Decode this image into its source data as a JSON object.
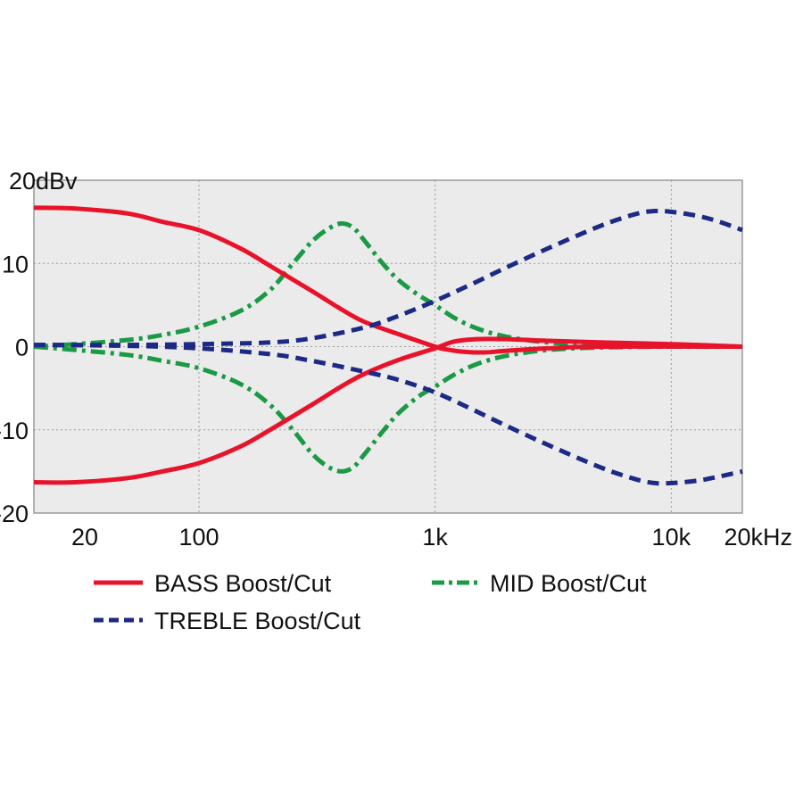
{
  "chart_data": {
    "type": "line",
    "title": "",
    "xlabel": "",
    "ylabel": "",
    "x_scale": "log",
    "xlim": [
      20,
      20000
    ],
    "ylim": [
      -20,
      20
    ],
    "grid": true,
    "legend_position": "bottom",
    "x_ticks": [
      {
        "value": 20,
        "label": "20"
      },
      {
        "value": 100,
        "label": "100"
      },
      {
        "value": 1000,
        "label": "1k"
      },
      {
        "value": 10000,
        "label": "10k"
      },
      {
        "value": 20000,
        "label": "20kHz"
      }
    ],
    "y_ticks": [
      {
        "value": 20,
        "label": "20dBv"
      },
      {
        "value": 10,
        "label": "10"
      },
      {
        "value": 0,
        "label": "0"
      },
      {
        "value": -10,
        "label": "-10"
      },
      {
        "value": -20,
        "label": "-20"
      }
    ],
    "legend": [
      {
        "series": "bass",
        "label": "BASS Boost/Cut"
      },
      {
        "series": "mid",
        "label": "MID Boost/Cut"
      },
      {
        "series": "treble",
        "label": "TREBLE Boost/Cut"
      }
    ],
    "series": [
      {
        "id": "bass",
        "name": "BASS Boost/Cut",
        "color": "#e8132b",
        "dash": "solid",
        "curves": [
          [
            [
              20,
              16.7
            ],
            [
              30,
              16.6
            ],
            [
              50,
              16.0
            ],
            [
              70,
              15.0
            ],
            [
              100,
              14.0
            ],
            [
              150,
              11.8
            ],
            [
              200,
              9.7
            ],
            [
              300,
              6.7
            ],
            [
              400,
              4.5
            ],
            [
              500,
              3.0
            ],
            [
              700,
              1.5
            ],
            [
              1000,
              0.0
            ],
            [
              1100,
              -0.3
            ],
            [
              1300,
              -0.6
            ],
            [
              1600,
              -0.7
            ],
            [
              2000,
              -0.5
            ],
            [
              3000,
              -0.2
            ],
            [
              5000,
              0.0
            ],
            [
              20000,
              0.0
            ]
          ],
          [
            [
              20,
              -16.3
            ],
            [
              30,
              -16.3
            ],
            [
              50,
              -15.8
            ],
            [
              70,
              -15.0
            ],
            [
              100,
              -14.0
            ],
            [
              150,
              -12.0
            ],
            [
              200,
              -10.0
            ],
            [
              300,
              -7.0
            ],
            [
              400,
              -4.8
            ],
            [
              500,
              -3.3
            ],
            [
              700,
              -1.6
            ],
            [
              1000,
              -0.2
            ],
            [
              1200,
              0.6
            ],
            [
              1500,
              0.9
            ],
            [
              2000,
              0.9
            ],
            [
              3000,
              0.7
            ],
            [
              5000,
              0.5
            ],
            [
              10000,
              0.3
            ],
            [
              20000,
              0.0
            ]
          ]
        ]
      },
      {
        "id": "mid",
        "name": "MID Boost/Cut",
        "color": "#1a9a44",
        "dash": "dashdot",
        "curves": [
          [
            [
              20,
              0.0
            ],
            [
              30,
              0.3
            ],
            [
              50,
              0.8
            ],
            [
              70,
              1.4
            ],
            [
              100,
              2.4
            ],
            [
              150,
              4.3
            ],
            [
              200,
              6.8
            ],
            [
              250,
              10.0
            ],
            [
              300,
              12.6
            ],
            [
              350,
              14.1
            ],
            [
              400,
              14.8
            ],
            [
              450,
              14.3
            ],
            [
              500,
              12.8
            ],
            [
              600,
              10.0
            ],
            [
              700,
              8.0
            ],
            [
              850,
              6.2
            ],
            [
              1000,
              5.0
            ],
            [
              1200,
              3.5
            ],
            [
              1500,
              2.2
            ],
            [
              2000,
              1.2
            ],
            [
              3000,
              0.5
            ],
            [
              5000,
              0.2
            ],
            [
              10000,
              0.0
            ],
            [
              20000,
              0.0
            ]
          ],
          [
            [
              20,
              0.0
            ],
            [
              30,
              -0.4
            ],
            [
              50,
              -1.0
            ],
            [
              70,
              -1.7
            ],
            [
              100,
              -2.6
            ],
            [
              150,
              -4.5
            ],
            [
              200,
              -7.0
            ],
            [
              250,
              -10.0
            ],
            [
              300,
              -12.8
            ],
            [
              350,
              -14.4
            ],
            [
              400,
              -15.0
            ],
            [
              450,
              -14.5
            ],
            [
              500,
              -13.0
            ],
            [
              600,
              -10.2
            ],
            [
              700,
              -8.0
            ],
            [
              850,
              -6.0
            ],
            [
              1000,
              -4.8
            ],
            [
              1200,
              -3.4
            ],
            [
              1500,
              -2.1
            ],
            [
              2000,
              -1.1
            ],
            [
              3000,
              -0.4
            ],
            [
              5000,
              -0.1
            ],
            [
              10000,
              0.0
            ],
            [
              20000,
              0.0
            ]
          ]
        ]
      },
      {
        "id": "treble",
        "name": "TREBLE Boost/Cut",
        "color": "#1c2a86",
        "dash": "dashed",
        "curves": [
          [
            [
              20,
              0.2
            ],
            [
              50,
              0.2
            ],
            [
              100,
              0.3
            ],
            [
              200,
              0.5
            ],
            [
              300,
              1.0
            ],
            [
              500,
              2.3
            ],
            [
              700,
              3.7
            ],
            [
              1000,
              5.5
            ],
            [
              1500,
              7.8
            ],
            [
              2000,
              9.5
            ],
            [
              3000,
              11.8
            ],
            [
              5000,
              14.5
            ],
            [
              7000,
              15.9
            ],
            [
              8500,
              16.3
            ],
            [
              10000,
              16.2
            ],
            [
              13000,
              15.7
            ],
            [
              16000,
              15.0
            ],
            [
              20000,
              14.0
            ]
          ],
          [
            [
              20,
              0.2
            ],
            [
              50,
              0.1
            ],
            [
              100,
              -0.2
            ],
            [
              200,
              -0.9
            ],
            [
              300,
              -1.7
            ],
            [
              500,
              -3.0
            ],
            [
              700,
              -4.0
            ],
            [
              1000,
              -5.5
            ],
            [
              1500,
              -7.8
            ],
            [
              2000,
              -9.5
            ],
            [
              3000,
              -11.8
            ],
            [
              5000,
              -14.5
            ],
            [
              7000,
              -15.9
            ],
            [
              8500,
              -16.4
            ],
            [
              10000,
              -16.4
            ],
            [
              13000,
              -16.1
            ],
            [
              16000,
              -15.6
            ],
            [
              20000,
              -15.0
            ]
          ]
        ]
      }
    ]
  }
}
